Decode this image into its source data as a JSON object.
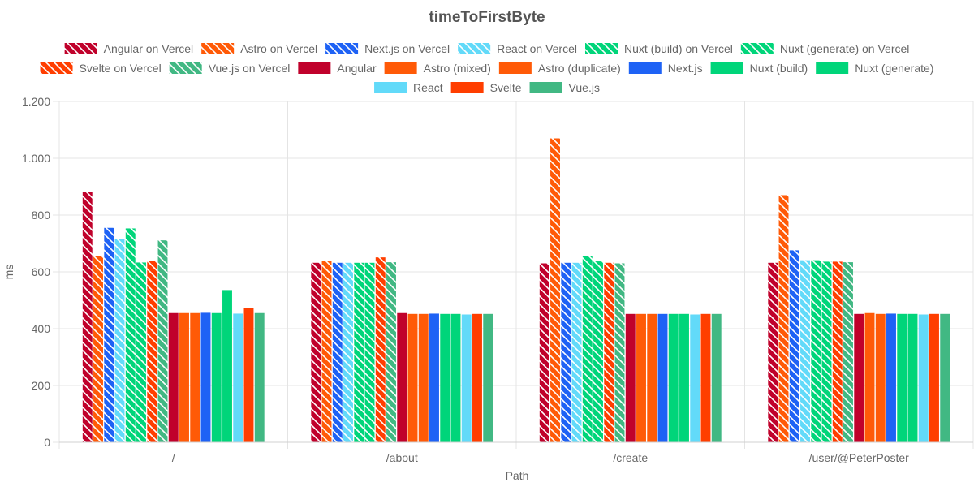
{
  "chart_data": {
    "type": "bar",
    "title": "timeToFirstByte",
    "xlabel": "Path",
    "ylabel": "ms",
    "categories": [
      "/",
      "/about",
      "/create",
      "/user/@PeterPoster"
    ],
    "ylim": [
      0,
      1200
    ],
    "yticks": [
      0,
      200,
      400,
      600,
      800,
      1000,
      1200
    ],
    "ytick_labels": [
      "0",
      "200",
      "400",
      "600",
      "800",
      "1.000",
      "1.200"
    ],
    "grid": true,
    "legend_position": "top",
    "series": [
      {
        "name": "Angular on Vercel",
        "color": "#c0012b",
        "pattern": "hatched",
        "values": [
          880,
          632,
          630,
          632
        ]
      },
      {
        "name": "Astro on Vercel",
        "color": "#ff5a07",
        "pattern": "hatched",
        "values": [
          655,
          638,
          1070,
          870
        ]
      },
      {
        "name": "Next.js on Vercel",
        "color": "#1e62f5",
        "pattern": "hatched",
        "values": [
          755,
          632,
          632,
          676
        ]
      },
      {
        "name": "React on Vercel",
        "color": "#62daf9",
        "pattern": "hatched",
        "values": [
          715,
          632,
          632,
          641
        ]
      },
      {
        "name": "Nuxt (build) on Vercel",
        "color": "#00d57a",
        "pattern": "hatched",
        "values": [
          753,
          632,
          655,
          641
        ]
      },
      {
        "name": "Nuxt (generate) on Vercel",
        "color": "#00d57a",
        "pattern": "hatched",
        "values": [
          633,
          632,
          637,
          636
        ]
      },
      {
        "name": "Svelte on Vercel",
        "color": "#ff3e00",
        "pattern": "hatched",
        "values": [
          640,
          651,
          632,
          636
        ]
      },
      {
        "name": "Vue.js on Vercel",
        "color": "#41b883",
        "pattern": "hatched",
        "values": [
          711,
          634,
          630,
          634
        ]
      },
      {
        "name": "Angular",
        "color": "#c0012b",
        "pattern": "solid",
        "values": [
          455,
          455,
          452,
          452
        ]
      },
      {
        "name": "Astro (mixed)",
        "color": "#ff5a07",
        "pattern": "solid",
        "values": [
          455,
          452,
          452,
          455
        ]
      },
      {
        "name": "Astro (duplicate)",
        "color": "#ff5a07",
        "pattern": "solid",
        "values": [
          455,
          452,
          452,
          452
        ]
      },
      {
        "name": "Next.js",
        "color": "#1e62f5",
        "pattern": "solid",
        "values": [
          456,
          453,
          452,
          453
        ]
      },
      {
        "name": "Nuxt (build)",
        "color": "#00d57a",
        "pattern": "solid",
        "values": [
          455,
          452,
          452,
          452
        ]
      },
      {
        "name": "Nuxt (generate)",
        "color": "#00d57a",
        "pattern": "solid",
        "values": [
          536,
          452,
          452,
          452
        ]
      },
      {
        "name": "React",
        "color": "#62daf9",
        "pattern": "solid",
        "values": [
          453,
          450,
          450,
          450
        ]
      },
      {
        "name": "Svelte",
        "color": "#ff3e00",
        "pattern": "solid",
        "values": [
          472,
          452,
          452,
          452
        ]
      },
      {
        "name": "Vue.js",
        "color": "#41b883",
        "pattern": "solid",
        "values": [
          455,
          452,
          452,
          452
        ]
      }
    ]
  }
}
